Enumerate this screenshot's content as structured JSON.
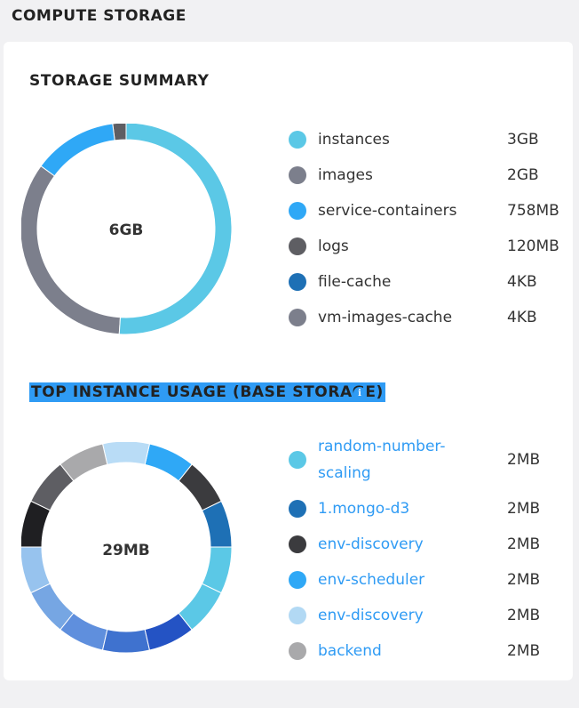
{
  "page": {
    "title": "COMPUTE STORAGE"
  },
  "summary": {
    "title": "STORAGE SUMMARY",
    "total": "6GB",
    "items": [
      {
        "name": "instances",
        "value": "3GB",
        "color": "#5bc8e6"
      },
      {
        "name": "images",
        "value": "2GB",
        "color": "#7c7f8c"
      },
      {
        "name": "service-containers",
        "value": "758MB",
        "color": "#2fa8f6"
      },
      {
        "name": "logs",
        "value": "120MB",
        "color": "#5e5e63"
      },
      {
        "name": "file-cache",
        "value": "4KB",
        "color": "#1e70b5"
      },
      {
        "name": "vm-images-cache",
        "value": "4KB",
        "color": "#7c7f8c"
      }
    ],
    "chart_data": {
      "type": "pie",
      "categories": [
        "instances",
        "images",
        "service-containers",
        "logs",
        "file-cache",
        "vm-images-cache"
      ],
      "values": [
        3000,
        2000,
        758,
        120,
        0.004,
        0.004
      ],
      "unit": "MB"
    }
  },
  "top_usage": {
    "title": "TOP INSTANCE USAGE (BASE STORAGE)",
    "info_icon": "info-icon",
    "total": "29MB",
    "items": [
      {
        "name": "random-number-\nscaling",
        "value": "2MB",
        "color": "#5bc8e6"
      },
      {
        "name": "1.mongo-d3",
        "value": "2MB",
        "color": "#1e70b5"
      },
      {
        "name": "env-discovery",
        "value": "2MB",
        "color": "#3b3b3e"
      },
      {
        "name": "env-scheduler",
        "value": "2MB",
        "color": "#2fa8f6"
      },
      {
        "name": "env-discovery",
        "value": "2MB",
        "color": "#b2d9f4"
      },
      {
        "name": "backend",
        "value": "2MB",
        "color": "#a9a9ab"
      }
    ],
    "ring_colors": [
      "#5bc8e6",
      "#5bc8e6",
      "#2453c4",
      "#3f72cf",
      "#5f8fdd",
      "#76a6e3",
      "#97c3ee",
      "#1f1f22",
      "#5e5e63",
      "#a9a9ab",
      "#b9dcf6",
      "#2fa8f6",
      "#3b3b3e",
      "#1e70b5"
    ],
    "chart_data": {
      "type": "pie",
      "categories": [
        "random-number-scaling",
        "1.mongo-d3",
        "env-discovery",
        "env-scheduler",
        "env-discovery",
        "backend"
      ],
      "values": [
        2,
        2,
        2,
        2,
        2,
        2
      ],
      "unit": "MB"
    }
  }
}
